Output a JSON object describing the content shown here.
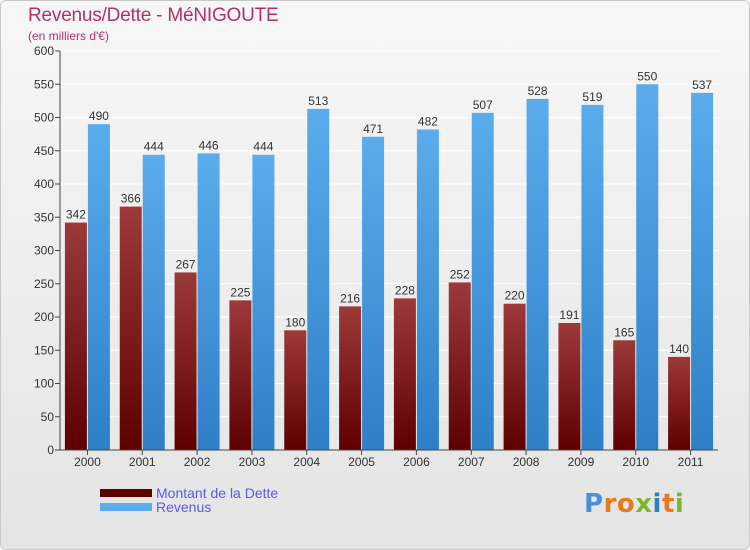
{
  "title": "Revenus/Dette - MéNIGOUTE",
  "subtitle": "(en milliers d'€)",
  "logo_text": "Proxiti",
  "colors": {
    "debt_top": "#9c3a3a",
    "debt_bottom": "#5e0000",
    "rev_top": "#5aacec",
    "rev_bottom": "#2f7fc7",
    "title": "#b0306e",
    "legend_text": "#5a5ae6"
  },
  "chart_data": {
    "type": "bar",
    "title": "Revenus/Dette - MéNIGOUTE",
    "ylabel": "(en milliers d'€)",
    "categories": [
      "2000",
      "2001",
      "2002",
      "2003",
      "2004",
      "2005",
      "2006",
      "2007",
      "2008",
      "2009",
      "2010",
      "2011"
    ],
    "series": [
      {
        "name": "Montant de la Dette",
        "values": [
          342,
          366,
          267,
          225,
          180,
          216,
          228,
          252,
          220,
          191,
          165,
          140
        ]
      },
      {
        "name": "Revenus",
        "values": [
          490,
          444,
          446,
          444,
          513,
          471,
          482,
          507,
          528,
          519,
          550,
          537
        ]
      }
    ],
    "ylim": [
      0,
      600
    ],
    "yticks": [
      0,
      50,
      100,
      150,
      200,
      250,
      300,
      350,
      400,
      450,
      500,
      550,
      600
    ],
    "grid": true,
    "legend": "bottom-left"
  }
}
